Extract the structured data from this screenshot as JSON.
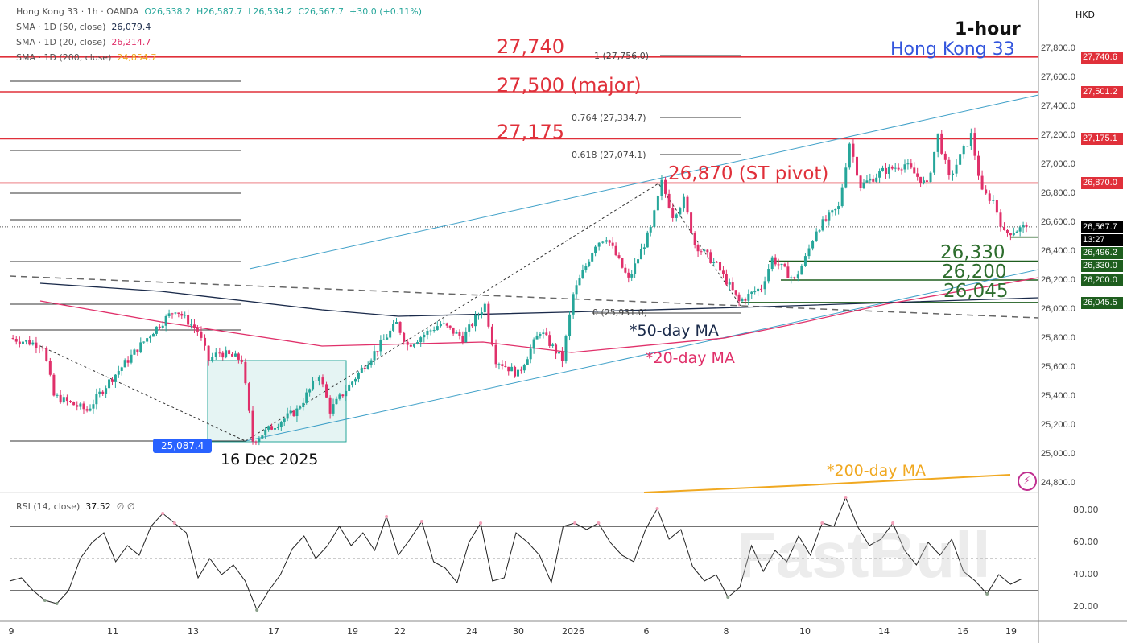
{
  "header": {
    "symbol": "Hong Kong 33",
    "interval": "1h",
    "source": "OANDA",
    "open": "O26,538.2",
    "high": "H26,587.7",
    "low": "L26,534.2",
    "close": "C26,567.7",
    "change": "+30.0 (+0.11%)"
  },
  "indicators": [
    {
      "label": "SMA · 1D (50, close)",
      "value": "26,079.4",
      "color": "#1a2a4a"
    },
    {
      "label": "SMA · 1D (20, close)",
      "value": "26,214.7",
      "color": "#e0306a"
    },
    {
      "label": "SMA · 1D (200, close)",
      "value": "24,854.7",
      "color": "#f0a820"
    }
  ],
  "currency": "HKD",
  "title": {
    "timeframe": "1-hour",
    "instrument": "Hong Kong 33"
  },
  "annotations": {
    "r1": "27,740",
    "r2": "27,500 (major)",
    "r3": "27,175",
    "pivot": "26,870 (ST pivot)",
    "s1": "26,330",
    "s2": "26,200",
    "s3": "26,045",
    "ma50": "*50-day MA",
    "ma20": "*20-day MA",
    "ma200": "*200-day MA",
    "low_date": "16 Dec 2025",
    "low_value": "25,087.4"
  },
  "fib": {
    "f1": "1 (27,756.0)",
    "f0764": "0.764 (27,334.7)",
    "f0618": "0.618 (27,074.1)",
    "f0": "0 (25,931.0)"
  },
  "price_labels": [
    {
      "text": "27,740.6",
      "price": 27740.6,
      "color": "#e0303a"
    },
    {
      "text": "27,501.2",
      "price": 27501.2,
      "color": "#e0303a"
    },
    {
      "text": "27,175.1",
      "price": 27175.1,
      "color": "#e0303a"
    },
    {
      "text": "26,870.0",
      "price": 26870,
      "color": "#e0303a"
    },
    {
      "text": "26,567.7",
      "price": 26567.7,
      "color": "#000000"
    },
    {
      "text": "26,496.2",
      "price": 26496.2,
      "color": "#1e5e1e"
    },
    {
      "text": "26,330.0",
      "price": 26330,
      "color": "#1e5e1e"
    },
    {
      "text": "26,200.0",
      "price": 26200,
      "color": "#1e5e1e"
    },
    {
      "text": "26,045.5",
      "price": 26045.5,
      "color": "#1e5e1e"
    }
  ],
  "countdown": "13:27",
  "rsi": {
    "label": "RSI (14, close)",
    "value": "37.52",
    "extra": "∅ ∅",
    "ticks": [
      "80.00",
      "60.00",
      "40.00",
      "20.00"
    ]
  },
  "watermark": "FastBull",
  "chart_data": {
    "type": "candlestick",
    "title": "Hong Kong 33 1-hour",
    "ylabel": "HKD",
    "ylim": [
      24700,
      27900
    ],
    "yticks": [
      "27,800.0",
      "27,600.0",
      "27,400.0",
      "27,200.0",
      "27,000.0",
      "26,800.0",
      "26,600.0",
      "26,400.0",
      "26,200.0",
      "26,000.0",
      "25,800.0",
      "25,600.0",
      "25,400.0",
      "25,200.0",
      "25,000.0",
      "24,800.0"
    ],
    "xticks": [
      "9",
      "11",
      "13",
      "17",
      "19",
      "22",
      "24",
      "30",
      "2026",
      "6",
      "8",
      "10",
      "14",
      "16",
      "19"
    ],
    "price_path": [
      [
        0,
        25800
      ],
      [
        3,
        25750
      ],
      [
        4,
        25400
      ],
      [
        7,
        25300
      ],
      [
        9,
        25500
      ],
      [
        13,
        25850
      ],
      [
        15,
        26000
      ],
      [
        17,
        25850
      ],
      [
        18,
        25650
      ],
      [
        19,
        25700
      ],
      [
        21,
        25650
      ],
      [
        22,
        25090
      ],
      [
        24,
        25200
      ],
      [
        26,
        25300
      ],
      [
        28,
        25550
      ],
      [
        29,
        25300
      ],
      [
        31,
        25500
      ],
      [
        33,
        25700
      ],
      [
        35,
        25900
      ],
      [
        36,
        25750
      ],
      [
        39,
        25900
      ],
      [
        41,
        25800
      ],
      [
        43,
        26030
      ],
      [
        44,
        25650
      ],
      [
        46,
        25550
      ],
      [
        48,
        25850
      ],
      [
        50,
        25650
      ],
      [
        51,
        26100
      ],
      [
        53,
        26450
      ],
      [
        54,
        26500
      ],
      [
        56,
        26200
      ],
      [
        58,
        26550
      ],
      [
        59,
        26870
      ],
      [
        60,
        26650
      ],
      [
        61,
        26750
      ],
      [
        62,
        26450
      ],
      [
        64,
        26300
      ],
      [
        66,
        26050
      ],
      [
        68,
        26150
      ],
      [
        69,
        26350
      ],
      [
        71,
        26200
      ],
      [
        72,
        26350
      ],
      [
        73,
        26550
      ],
      [
        75,
        26700
      ],
      [
        76,
        27150
      ],
      [
        77,
        26850
      ],
      [
        79,
        26950
      ],
      [
        81,
        27000
      ],
      [
        83,
        26850
      ],
      [
        84,
        27200
      ],
      [
        85,
        26900
      ],
      [
        86,
        27050
      ],
      [
        87,
        27200
      ],
      [
        88,
        26800
      ],
      [
        89,
        26750
      ],
      [
        90,
        26520
      ],
      [
        92,
        26567.7
      ]
    ],
    "levels": [
      27740,
      27500,
      27175,
      26870,
      26330,
      26200,
      26045
    ],
    "rsi_series": [
      36,
      38,
      30,
      24,
      22,
      30,
      50,
      60,
      66,
      48,
      58,
      52,
      70,
      78,
      72,
      66,
      38,
      50,
      40,
      46,
      36,
      18,
      30,
      40,
      56,
      64,
      50,
      58,
      70,
      58,
      66,
      55,
      76,
      52,
      62,
      73,
      48,
      44,
      35,
      60,
      72,
      36,
      38,
      66,
      60,
      52,
      35,
      70,
      72,
      68,
      72,
      60,
      52,
      48,
      68,
      81,
      62,
      68,
      45,
      36,
      40,
      26,
      32,
      58,
      42,
      55,
      48,
      64,
      52,
      72,
      70,
      88,
      70,
      58,
      62,
      72,
      55,
      46,
      60,
      52,
      62,
      42,
      36,
      28,
      40,
      34,
      37.5
    ],
    "rsi_ylim": [
      10,
      90
    ],
    "rsi_bands": [
      30,
      50,
      70
    ]
  }
}
